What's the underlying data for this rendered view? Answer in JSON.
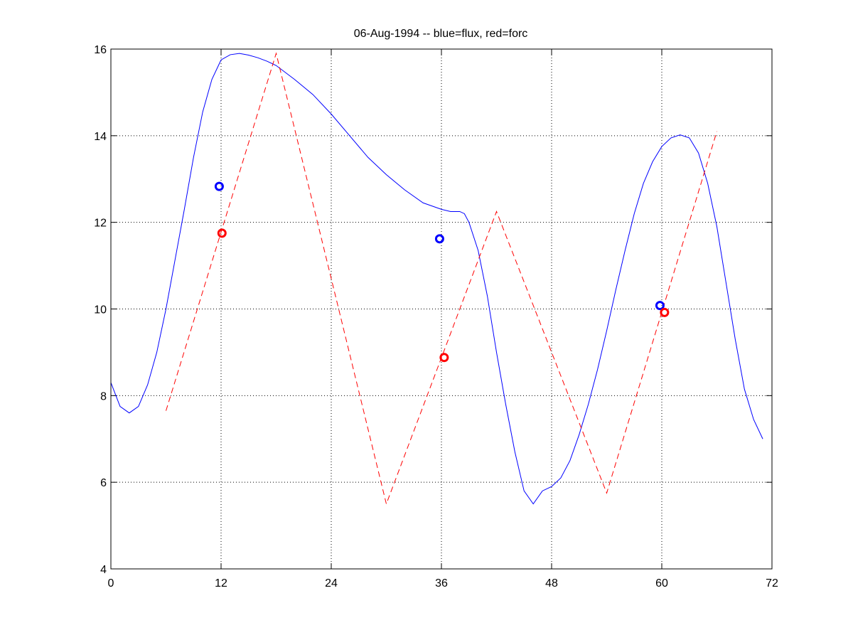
{
  "chart_data": {
    "type": "line",
    "title": "06-Aug-1994 -- blue=flux, red=forc",
    "xlabel": "",
    "ylabel": "",
    "xlim": [
      0,
      72
    ],
    "ylim": [
      4,
      16
    ],
    "x_ticks": [
      0,
      12,
      24,
      36,
      48,
      60,
      72
    ],
    "y_ticks": [
      4,
      6,
      8,
      10,
      12,
      14,
      16
    ],
    "grid": true,
    "series": [
      {
        "style": "solid-line",
        "color": "#0000ff",
        "x": [
          0,
          1,
          2,
          3,
          4,
          5,
          6,
          7,
          8,
          9,
          10,
          11,
          12,
          13,
          14,
          15,
          16,
          17,
          18,
          20,
          22,
          24,
          26,
          28,
          30,
          32,
          34,
          36,
          37,
          38,
          38.5,
          39,
          40,
          41,
          42,
          43,
          44,
          45,
          46,
          47,
          48,
          49,
          50,
          51,
          52,
          53,
          54,
          55,
          56,
          57,
          58,
          59,
          60,
          61,
          62,
          63,
          64,
          65,
          66,
          67,
          68,
          69,
          70,
          71
        ],
        "y": [
          8.3,
          7.75,
          7.6,
          7.75,
          8.25,
          9.0,
          10.0,
          11.15,
          12.3,
          13.5,
          14.55,
          15.3,
          15.75,
          15.87,
          15.9,
          15.86,
          15.8,
          15.72,
          15.62,
          15.3,
          14.95,
          14.5,
          14.0,
          13.5,
          13.1,
          12.75,
          12.45,
          12.3,
          12.25,
          12.25,
          12.2,
          12.0,
          11.35,
          10.3,
          9.0,
          7.8,
          6.7,
          5.8,
          5.5,
          5.8,
          5.9,
          6.1,
          6.5,
          7.1,
          7.8,
          8.6,
          9.5,
          10.45,
          11.35,
          12.2,
          12.9,
          13.4,
          13.75,
          13.95,
          14.02,
          13.95,
          13.6,
          12.9,
          11.9,
          10.6,
          9.3,
          8.15,
          7.45,
          7.0
        ]
      },
      {
        "style": "dashed-line",
        "color": "#ff0000",
        "x": [
          6,
          18,
          30,
          42,
          54,
          66
        ],
        "y": [
          7.65,
          15.9,
          5.5,
          12.25,
          5.75,
          14.1
        ]
      },
      {
        "style": "circle-markers",
        "color": "#0000ff",
        "x": [
          11.8,
          35.8,
          59.8
        ],
        "y": [
          12.83,
          11.62,
          10.08
        ]
      },
      {
        "style": "circle-markers",
        "color": "#ff0000",
        "x": [
          12.1,
          36.3,
          60.3
        ],
        "y": [
          11.75,
          8.88,
          9.92
        ]
      }
    ]
  }
}
